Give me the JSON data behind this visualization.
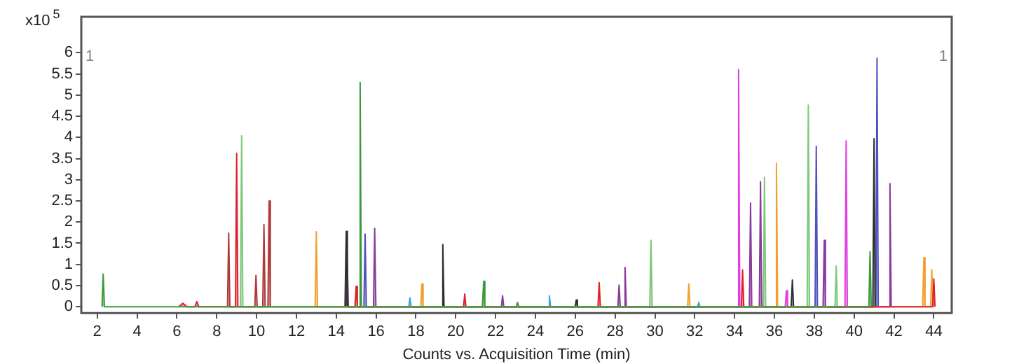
{
  "chart_data": {
    "type": "area",
    "xlabel": "Counts vs. Acquisition Time (min)",
    "ylabel": "x10$^{5}$",
    "annotations": [
      "1",
      "1"
    ],
    "xlim": [
      1.2,
      44.9
    ],
    "xticks": [
      2,
      4,
      6,
      8,
      10,
      12,
      14,
      16,
      18,
      20,
      22,
      24,
      26,
      28,
      30,
      32,
      34,
      36,
      38,
      40,
      42,
      44
    ],
    "ylim": [
      -0.15,
      6.85
    ],
    "yticks": [
      0,
      0.5,
      1,
      1.5,
      2,
      2.5,
      3,
      3.5,
      4,
      4.5,
      5,
      5.5,
      6
    ],
    "grid": false,
    "legend": false,
    "marker": "none",
    "series": [
      {
        "color": "#3a9a3a",
        "x": [
          2.24,
          2.3,
          2.36,
          15.14,
          15.2,
          15.26,
          21.34,
          21.4,
          21.46,
          23.04,
          23.1,
          23.16,
          40.74,
          40.8,
          40.86
        ],
        "values": [
          0,
          0.77,
          0,
          0,
          5.3,
          0,
          0,
          0.6,
          0,
          0,
          0.1,
          0,
          0,
          1.3,
          0
        ]
      },
      {
        "color": "#7cc87c",
        "x": [
          9.19,
          9.25,
          9.31,
          29.74,
          29.8,
          29.86,
          35.44,
          35.5,
          35.56,
          37.64,
          37.7,
          37.76,
          39.04,
          39.1,
          39.16
        ],
        "values": [
          0,
          4.04,
          0,
          0,
          1.57,
          0,
          0,
          3.06,
          0,
          0,
          4.76,
          0,
          0,
          0.96,
          0
        ]
      },
      {
        "color": "#e0202a",
        "x": [
          6.1,
          6.3,
          6.5,
          6.9,
          7.0,
          7.1,
          8.94,
          9.0,
          9.06,
          14.94,
          15.0,
          15.06,
          20.39,
          20.45,
          20.51,
          27.14,
          27.2,
          27.26,
          34.34,
          34.4,
          34.46,
          43.94,
          44.0,
          44.06
        ],
        "values": [
          0,
          0.08,
          0,
          0,
          0.12,
          0,
          0,
          3.62,
          0,
          0,
          0.48,
          0,
          0,
          0.3,
          0,
          0,
          0.57,
          0,
          0,
          0.87,
          0,
          0,
          0.66,
          0
        ]
      },
      {
        "color": "#b03a3a",
        "x": [
          8.54,
          8.6,
          8.66,
          9.91,
          9.97,
          10.03,
          10.31,
          10.37,
          10.43,
          10.57,
          10.63,
          10.69
        ],
        "values": [
          0,
          1.74,
          0,
          0,
          0.74,
          0,
          0,
          1.94,
          0,
          0,
          2.5,
          0
        ]
      },
      {
        "color": "#f0a030",
        "x": [
          12.94,
          13.0,
          13.06,
          18.24,
          18.3,
          18.36,
          31.64,
          31.7,
          31.76,
          36.04,
          36.1,
          36.16,
          43.44,
          43.5,
          43.56,
          43.84,
          43.9,
          43.96
        ],
        "values": [
          0,
          1.77,
          0,
          0,
          0.54,
          0,
          0,
          0.54,
          0,
          0,
          3.39,
          0,
          0,
          1.16,
          0,
          0,
          0.88,
          0
        ]
      },
      {
        "color": "#303030",
        "x": [
          14.44,
          14.5,
          14.56,
          19.29,
          19.35,
          19.41,
          25.99,
          26.05,
          26.11,
          36.84,
          36.9,
          36.96,
          40.94,
          41.0,
          41.06
        ],
        "values": [
          0,
          1.78,
          0,
          0,
          1.47,
          0,
          0,
          0.16,
          0,
          0,
          0.63,
          0,
          0,
          3.97,
          0
        ]
      },
      {
        "color": "#8a3a9a",
        "x": [
          14.49,
          14.55,
          14.61,
          15.87,
          15.93,
          15.99,
          22.29,
          22.35,
          22.41,
          28.14,
          28.2,
          28.26,
          28.44,
          28.5,
          28.56,
          34.74,
          34.8,
          34.86,
          35.24,
          35.3,
          35.36,
          38.44,
          38.5,
          38.56,
          41.74,
          41.8,
          41.86
        ],
        "values": [
          0,
          1.1,
          0,
          0,
          1.85,
          0,
          0,
          0.26,
          0,
          0,
          0.51,
          0,
          0,
          0.93,
          0,
          0,
          2.45,
          0,
          0,
          2.95,
          0,
          0,
          1.57,
          0,
          0,
          2.91,
          0
        ]
      },
      {
        "color": "#5050c0",
        "x": [
          15.39,
          15.45,
          15.51,
          38.04,
          38.1,
          38.16,
          41.09,
          41.15,
          41.21
        ],
        "values": [
          0,
          1.72,
          0,
          0,
          3.79,
          0,
          0,
          5.87,
          0
        ]
      },
      {
        "color": "#40a0e0",
        "x": [
          17.64,
          17.7,
          17.76,
          24.64,
          24.7,
          24.76,
          32.14,
          32.2,
          32.26
        ],
        "values": [
          0,
          0.21,
          0,
          0,
          0.26,
          0,
          0,
          0.1,
          0
        ]
      },
      {
        "color": "#e040e0",
        "x": [
          34.14,
          34.2,
          34.26,
          36.54,
          36.6,
          36.66,
          39.54,
          39.6,
          39.66
        ],
        "values": [
          0,
          5.6,
          0,
          0,
          0.38,
          0,
          0,
          3.92,
          0
        ]
      }
    ]
  }
}
